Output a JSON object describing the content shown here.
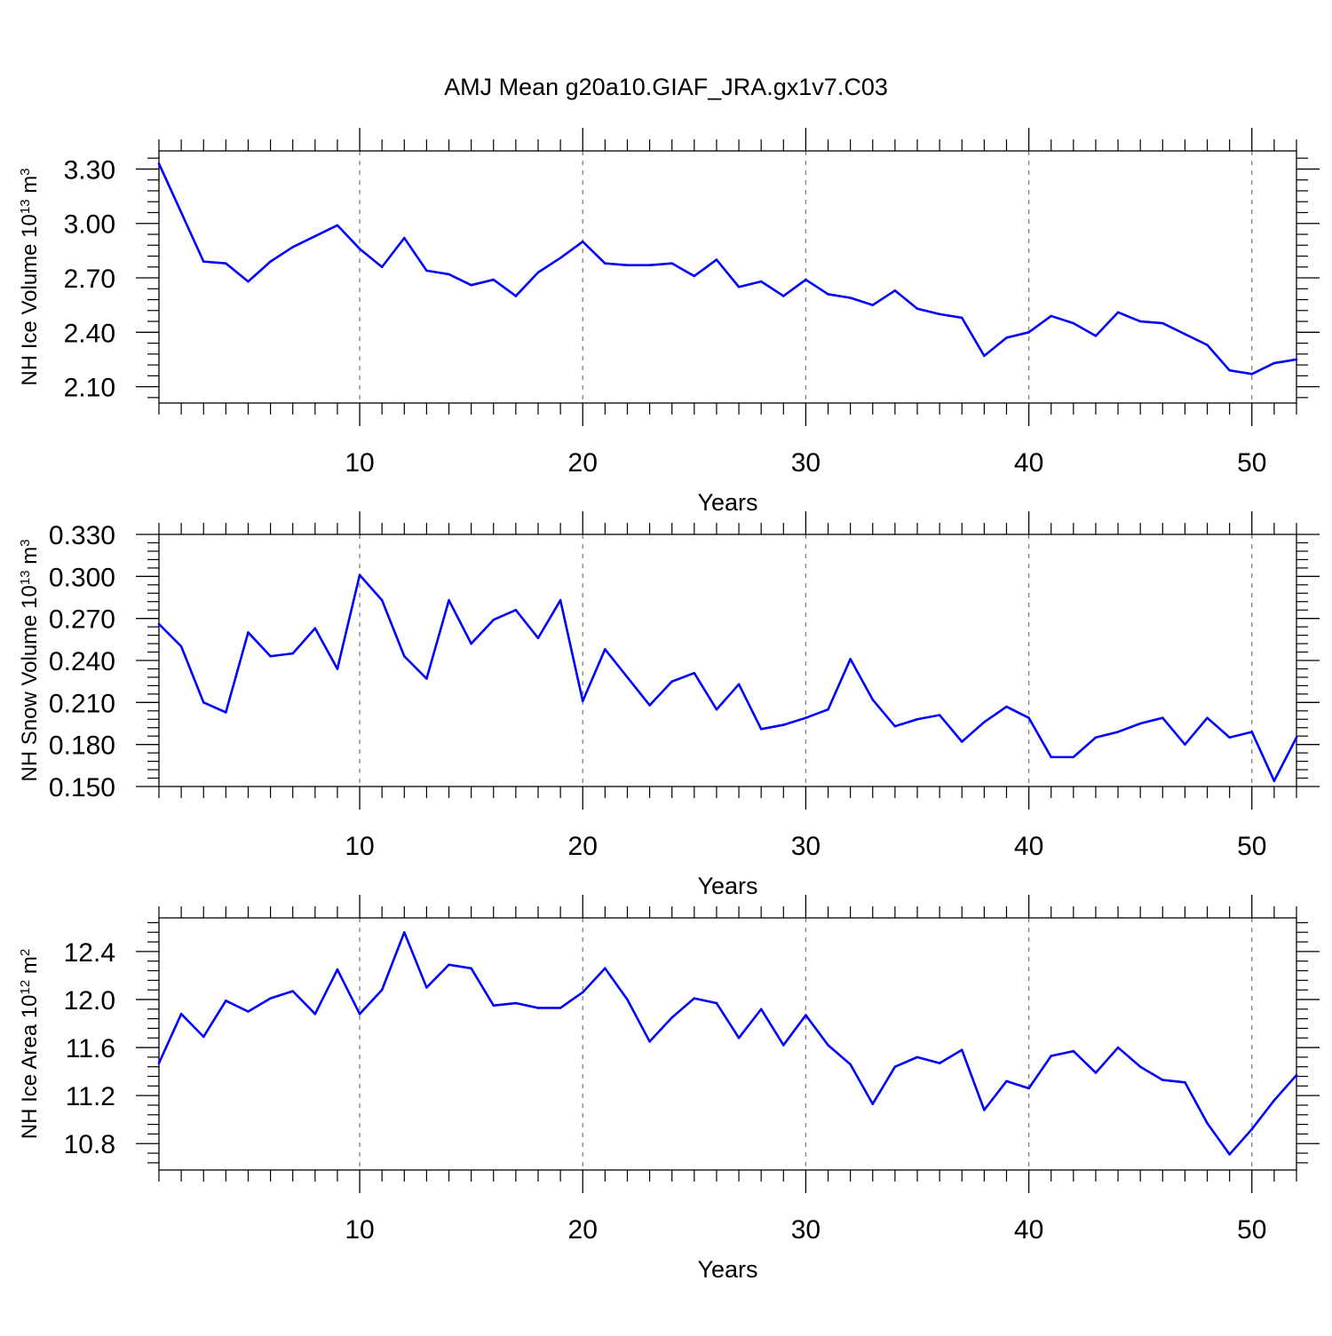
{
  "title": "AMJ Mean g20a10.GIAF_JRA.gx1v7.C03",
  "colors": {
    "series": "#0000ff",
    "axis": "#000000",
    "grid": "#808080"
  },
  "chart_data": [
    {
      "type": "line",
      "ylabel": {
        "base": "NH Ice Volume 10",
        "exp": "13",
        "unit": " m",
        "unit_exp": "3"
      },
      "xlabel": "Years",
      "xlim": [
        1,
        52
      ],
      "ylim": [
        2.01,
        3.4
      ],
      "xticks": [
        10,
        20,
        30,
        40,
        50
      ],
      "xtick_labels": [
        "10",
        "20",
        "30",
        "40",
        "50"
      ],
      "yticks": [
        2.1,
        2.4,
        2.7,
        3.0,
        3.3
      ],
      "ytick_labels": [
        "2.10",
        "2.40",
        "2.70",
        "3.00",
        "3.30"
      ],
      "yminor_step": 0.06,
      "grid": "vertical dashed at major x ticks",
      "series": [
        {
          "name": "NH Ice Volume",
          "x_start": 1,
          "values": [
            3.33,
            3.06,
            2.79,
            2.78,
            2.68,
            2.79,
            2.87,
            2.93,
            2.99,
            2.86,
            2.76,
            2.92,
            2.74,
            2.72,
            2.66,
            2.69,
            2.6,
            2.73,
            2.81,
            2.9,
            2.78,
            2.77,
            2.77,
            2.78,
            2.71,
            2.8,
            2.65,
            2.68,
            2.6,
            2.69,
            2.61,
            2.59,
            2.55,
            2.63,
            2.53,
            2.5,
            2.48,
            2.27,
            2.37,
            2.4,
            2.49,
            2.45,
            2.38,
            2.51,
            2.46,
            2.45,
            2.39,
            2.33,
            2.19,
            2.17,
            2.23,
            2.25
          ]
        }
      ]
    },
    {
      "type": "line",
      "ylabel": {
        "base": "NH Snow Volume 10",
        "exp": "13",
        "unit": " m",
        "unit_exp": "3"
      },
      "xlabel": "Years",
      "xlim": [
        1,
        52
      ],
      "ylim": [
        0.15,
        0.33
      ],
      "xticks": [
        10,
        20,
        30,
        40,
        50
      ],
      "xtick_labels": [
        "10",
        "20",
        "30",
        "40",
        "50"
      ],
      "yticks": [
        0.15,
        0.18,
        0.21,
        0.24,
        0.27,
        0.3,
        0.33
      ],
      "ytick_labels": [
        "0.150",
        "0.180",
        "0.210",
        "0.240",
        "0.270",
        "0.300",
        "0.330"
      ],
      "yminor_step": 0.006,
      "grid": "vertical dashed at major x ticks",
      "series": [
        {
          "name": "NH Snow Volume",
          "x_start": 1,
          "values": [
            0.266,
            0.25,
            0.21,
            0.203,
            0.26,
            0.243,
            0.245,
            0.263,
            0.234,
            0.301,
            0.283,
            0.243,
            0.227,
            0.283,
            0.252,
            0.269,
            0.276,
            0.256,
            0.283,
            0.211,
            0.248,
            0.228,
            0.208,
            0.225,
            0.231,
            0.205,
            0.223,
            0.191,
            0.194,
            0.199,
            0.205,
            0.241,
            0.212,
            0.193,
            0.198,
            0.201,
            0.182,
            0.196,
            0.207,
            0.199,
            0.171,
            0.171,
            0.185,
            0.189,
            0.195,
            0.199,
            0.18,
            0.199,
            0.185,
            0.189,
            0.154,
            0.185
          ]
        }
      ]
    },
    {
      "type": "line",
      "ylabel": {
        "base": "NH Ice Area 10",
        "exp": "12",
        "unit": " m",
        "unit_exp": "2"
      },
      "xlabel": "Years",
      "xlim": [
        1,
        52
      ],
      "ylim": [
        10.58,
        12.68
      ],
      "xticks": [
        10,
        20,
        30,
        40,
        50
      ],
      "xtick_labels": [
        "10",
        "20",
        "30",
        "40",
        "50"
      ],
      "yticks": [
        10.8,
        11.2,
        11.6,
        12.0,
        12.4
      ],
      "ytick_labels": [
        "10.8",
        "11.2",
        "11.6",
        "12.0",
        "12.4"
      ],
      "yminor_step": 0.08,
      "grid": "vertical dashed at major x ticks",
      "series": [
        {
          "name": "NH Ice Area",
          "x_start": 1,
          "values": [
            11.47,
            11.88,
            11.69,
            11.99,
            11.9,
            12.01,
            12.07,
            11.88,
            12.25,
            11.88,
            12.08,
            12.56,
            12.1,
            12.29,
            12.26,
            11.95,
            11.97,
            11.93,
            11.93,
            12.06,
            12.26,
            12.0,
            11.65,
            11.85,
            12.01,
            11.97,
            11.68,
            11.92,
            11.62,
            11.87,
            11.62,
            11.46,
            11.13,
            11.44,
            11.52,
            11.47,
            11.58,
            11.08,
            11.32,
            11.26,
            11.53,
            11.57,
            11.39,
            11.6,
            11.44,
            11.33,
            11.31,
            10.97,
            10.71,
            10.92,
            11.16,
            11.37
          ]
        }
      ]
    }
  ]
}
